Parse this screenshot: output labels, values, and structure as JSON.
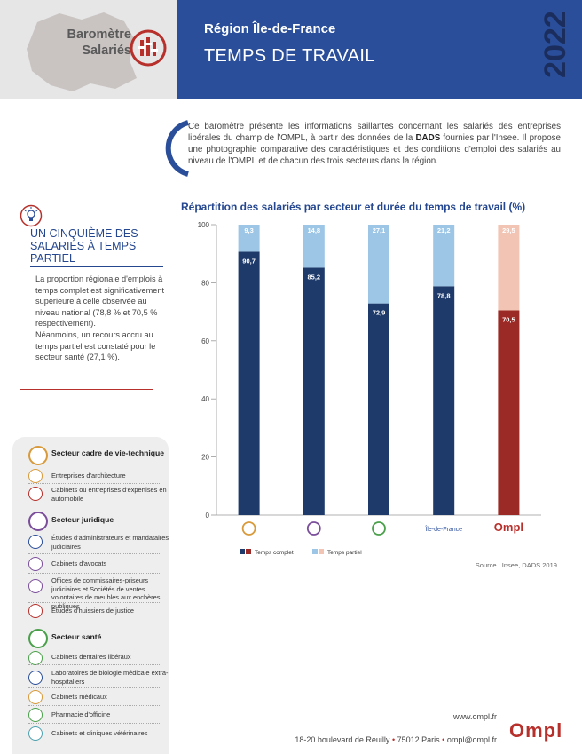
{
  "header": {
    "brand_line1": "Baromètre",
    "brand_line2": "Salariés",
    "region": "Région Île-de-France",
    "title": "TEMPS DE TRAVAIL",
    "year": "2022"
  },
  "intro": {
    "text_before": "Ce baromètre présente les informations saillantes concernant les salariés des entreprises libérales du champ de l'OMPL, à partir des données de la ",
    "bold": "DADS",
    "text_after": " fournies par l'Insee. Il propose une photographie comparative des caractéristiques et des conditions d'emploi des salariés au niveau de l'OMPL et de chacun des trois secteurs dans la région."
  },
  "key_finding": {
    "title": "UN CINQUIÈME DES SALARIÉS À TEMPS PARTIEL",
    "paragraph1": "La proportion régionale d'emplois à temps complet est significativement supérieure à celle observée au niveau national (78,8 % et 70,5 % respectivement).",
    "paragraph2": "Néanmoins, un recours accru au temps partiel est constaté pour le secteur santé (27,1 %)."
  },
  "chart_data": {
    "type": "bar",
    "title": "Répartition des salariés par secteur et durée du temps de travail (%)",
    "categories": [
      "Secteur cadre de vie-technique",
      "Secteur juridique",
      "Secteur santé",
      "Île-de-France",
      "Ompl"
    ],
    "category_labels": [
      "",
      "",
      "",
      "Île-de-France",
      "Ompl"
    ],
    "series": [
      {
        "name": "Temps complet",
        "values": [
          90.7,
          85.2,
          72.9,
          78.8,
          70.5
        ]
      },
      {
        "name": "Temps partiel",
        "values": [
          9.3,
          14.8,
          27.1,
          21.2,
          29.5
        ]
      }
    ],
    "full_labels": [
      "90,7",
      "85,2",
      "72,9",
      "78,8",
      "70,5"
    ],
    "part_labels": [
      "9,3",
      "14,8",
      "27,1",
      "21,2",
      "29,5"
    ],
    "yticks": [
      "0",
      "20",
      "40",
      "60",
      "80",
      "100"
    ],
    "ylim": [
      0,
      100
    ],
    "stacked": true,
    "colors": {
      "full_main": "#1d3a6b",
      "part_main": "#9dc6e6",
      "full_ompl": "#9b2a26",
      "part_ompl": "#f2c4b4"
    },
    "legend_position": "bottom-left"
  },
  "source": "Source : Insee, DADS 2019.",
  "sidebar": {
    "sections": [
      {
        "title": "Secteur cadre de vie-technique",
        "items": [
          "Entreprises d'architecture",
          "Cabinets ou entreprises d'expertises en automobile"
        ]
      },
      {
        "title": "Secteur juridique",
        "items": [
          "Études d'administrateurs et mandataires judiciaires",
          "Cabinets d'avocats",
          "Offices de commissaires-priseurs judiciaires et Sociétés de ventes volontaires de meubles aux enchères publiques",
          "Études d'huissiers de justice"
        ]
      },
      {
        "title": "Secteur santé",
        "items": [
          "Cabinets dentaires libéraux",
          "Laboratoires de biologie médicale extra-hospitaliers",
          "Cabinets médicaux",
          "Pharmacie d'officine",
          "Cabinets et cliniques vétérinaires"
        ]
      }
    ]
  },
  "footer": {
    "url": "www.ompl.fr",
    "address": "18-20 boulevard de Reuilly",
    "city": "75012 Paris",
    "email": "ompl@ompl.fr",
    "logo": "Ompl"
  }
}
